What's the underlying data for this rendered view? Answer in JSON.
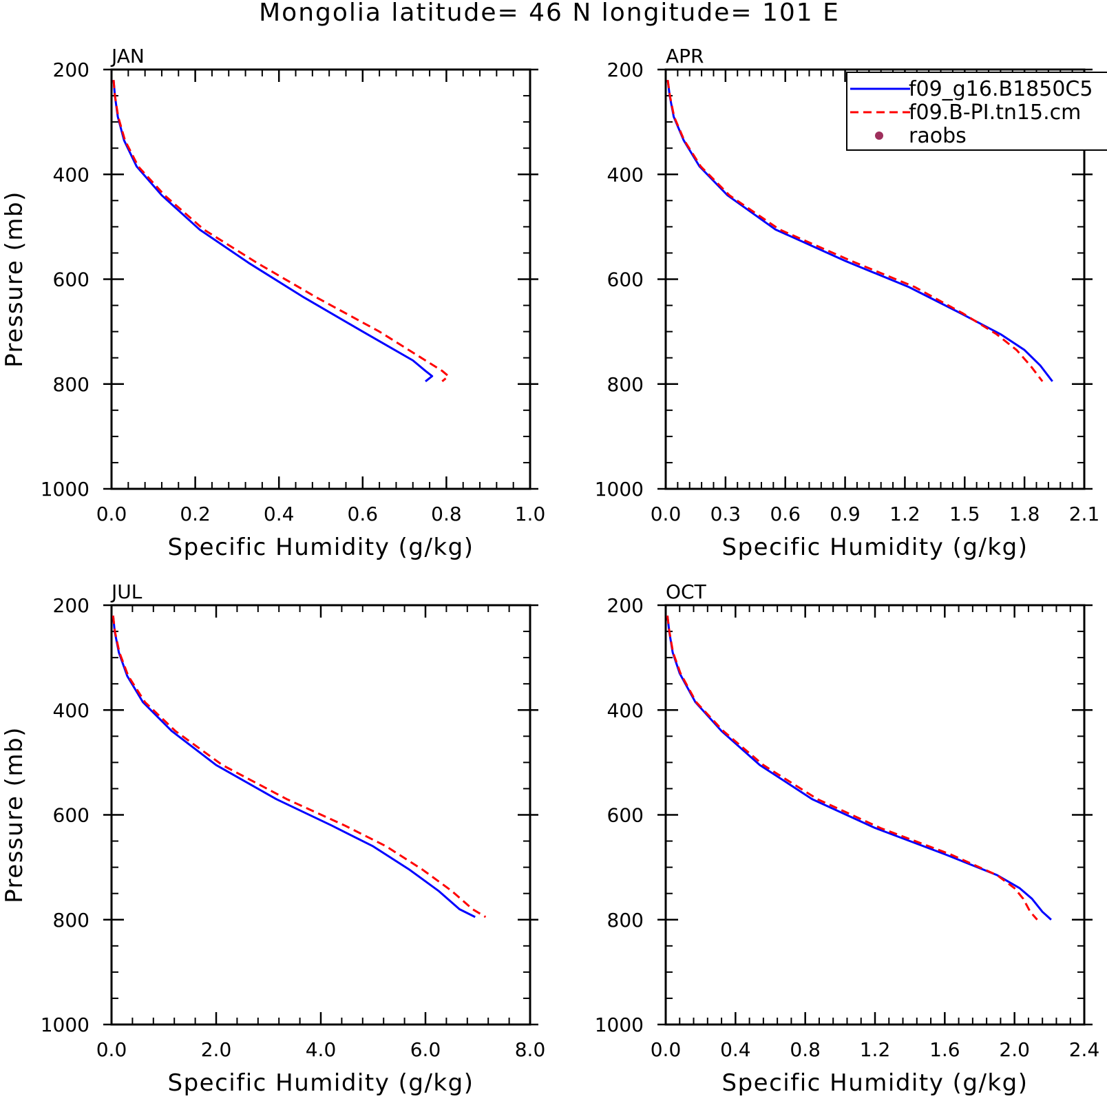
{
  "title": "Mongolia  latitude= 46 N longitude= 101 E",
  "legend": {
    "entries": [
      {
        "label": "f09_g16.B1850C5",
        "style": "solid",
        "color": "#0000ff"
      },
      {
        "label": "f09.B-PI.tn15.cm",
        "style": "dashed",
        "color": "#ff0000"
      },
      {
        "label": "raobs",
        "style": "marker",
        "color": "#9e2f5c"
      }
    ]
  },
  "chart_data": [
    {
      "type": "line",
      "panel": "JAN",
      "xlabel": "Specific Humidity (g/kg)",
      "ylabel": "Pressure (mb)",
      "xlim": [
        0,
        1.0
      ],
      "ylim": [
        1000,
        200
      ],
      "xticks": [
        "0.0",
        "0.2",
        "0.4",
        "0.6",
        "0.8",
        "1.0"
      ],
      "yticks": [
        "200",
        "400",
        "600",
        "800",
        "1000"
      ],
      "series": [
        {
          "name": "f09_g16.B1850C5",
          "color": "#0000ff",
          "style": "solid",
          "x": [
            0.005,
            0.008,
            0.015,
            0.03,
            0.06,
            0.12,
            0.21,
            0.33,
            0.46,
            0.6,
            0.72,
            0.75,
            0.766,
            0.75
          ],
          "y": [
            220,
            250,
            290,
            335,
            385,
            440,
            505,
            570,
            635,
            700,
            755,
            775,
            785,
            795
          ]
        },
        {
          "name": "f09.B-PI.tn15.cm",
          "color": "#ff0000",
          "style": "dashed",
          "x": [
            0.005,
            0.008,
            0.016,
            0.032,
            0.064,
            0.127,
            0.22,
            0.35,
            0.49,
            0.64,
            0.75,
            0.79,
            0.805,
            0.79
          ],
          "y": [
            220,
            250,
            290,
            335,
            385,
            440,
            505,
            570,
            635,
            700,
            755,
            775,
            785,
            795
          ]
        }
      ]
    },
    {
      "type": "line",
      "panel": "APR",
      "xlabel": "Specific Humidity (g/kg)",
      "ylabel": "",
      "xlim": [
        0,
        2.1
      ],
      "ylim": [
        1000,
        200
      ],
      "xticks": [
        "0.0",
        "0.3",
        "0.6",
        "0.9",
        "1.2",
        "1.5",
        "1.8",
        "2.1"
      ],
      "yticks": [
        "200",
        "400",
        "600",
        "800",
        "1000"
      ],
      "series": [
        {
          "name": "f09_g16.B1850C5",
          "color": "#0000ff",
          "style": "solid",
          "x": [
            0.01,
            0.02,
            0.04,
            0.09,
            0.17,
            0.31,
            0.55,
            0.9,
            1.22,
            1.48,
            1.68,
            1.8,
            1.88,
            1.92,
            1.94
          ],
          "y": [
            220,
            250,
            290,
            335,
            385,
            440,
            505,
            565,
            615,
            665,
            705,
            735,
            765,
            785,
            795
          ]
        },
        {
          "name": "f09.B-PI.tn15.cm",
          "color": "#ff0000",
          "style": "dashed",
          "x": [
            0.01,
            0.021,
            0.042,
            0.093,
            0.176,
            0.32,
            0.57,
            0.93,
            1.25,
            1.49,
            1.66,
            1.76,
            1.83,
            1.87,
            1.89
          ],
          "y": [
            220,
            250,
            290,
            335,
            385,
            440,
            505,
            565,
            615,
            665,
            705,
            735,
            765,
            785,
            795
          ]
        }
      ]
    },
    {
      "type": "line",
      "panel": "JUL",
      "xlabel": "Specific Humidity (g/kg)",
      "ylabel": "Pressure (mb)",
      "xlim": [
        0,
        8.0
      ],
      "ylim": [
        1000,
        200
      ],
      "xticks": [
        "0.0",
        "2.0",
        "4.0",
        "6.0",
        "8.0"
      ],
      "yticks": [
        "200",
        "400",
        "600",
        "800",
        "1000"
      ],
      "series": [
        {
          "name": "f09_g16.B1850C5",
          "color": "#0000ff",
          "style": "solid",
          "x": [
            0.03,
            0.06,
            0.14,
            0.3,
            0.6,
            1.15,
            2.0,
            3.15,
            4.2,
            5.0,
            5.7,
            6.25,
            6.65,
            6.95
          ],
          "y": [
            220,
            250,
            290,
            335,
            385,
            440,
            505,
            570,
            620,
            660,
            705,
            745,
            780,
            795
          ]
        },
        {
          "name": "f09.B-PI.tn15.cm",
          "color": "#ff0000",
          "style": "dashed",
          "x": [
            0.03,
            0.065,
            0.15,
            0.32,
            0.64,
            1.22,
            2.12,
            3.35,
            4.45,
            5.25,
            5.95,
            6.5,
            6.9,
            7.15
          ],
          "y": [
            220,
            250,
            290,
            335,
            385,
            440,
            505,
            570,
            620,
            660,
            705,
            745,
            780,
            795
          ]
        }
      ]
    },
    {
      "type": "line",
      "panel": "OCT",
      "xlabel": "Specific Humidity (g/kg)",
      "ylabel": "",
      "xlim": [
        0,
        2.4
      ],
      "ylim": [
        1000,
        200
      ],
      "xticks": [
        "0.0",
        "0.4",
        "0.8",
        "1.2",
        "1.6",
        "2.0",
        "2.4"
      ],
      "yticks": [
        "200",
        "400",
        "600",
        "800",
        "1000"
      ],
      "series": [
        {
          "name": "f09_g16.B1850C5",
          "color": "#0000ff",
          "style": "solid",
          "x": [
            0.01,
            0.02,
            0.04,
            0.08,
            0.17,
            0.32,
            0.54,
            0.84,
            1.2,
            1.6,
            1.9,
            2.03,
            2.1,
            2.16,
            2.21
          ],
          "y": [
            220,
            250,
            290,
            330,
            385,
            440,
            505,
            570,
            625,
            675,
            715,
            740,
            760,
            785,
            800
          ]
        },
        {
          "name": "f09.B-PI.tn15.cm",
          "color": "#ff0000",
          "style": "dashed",
          "x": [
            0.01,
            0.021,
            0.042,
            0.085,
            0.175,
            0.33,
            0.56,
            0.87,
            1.23,
            1.63,
            1.9,
            2.0,
            2.05,
            2.09,
            2.13
          ],
          "y": [
            220,
            250,
            290,
            330,
            385,
            440,
            505,
            570,
            625,
            675,
            715,
            740,
            760,
            785,
            800
          ]
        }
      ]
    }
  ]
}
